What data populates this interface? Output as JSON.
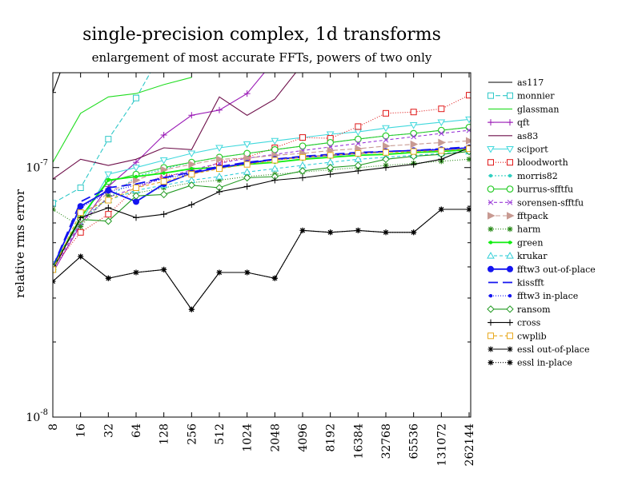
{
  "chart_data": {
    "type": "line",
    "title": "single-precision complex, 1d transforms",
    "subtitle": "enlargement of most accurate FFTs, powers of two only",
    "xlabel": "",
    "ylabel": "relative rms error",
    "yscale": "log",
    "ylim": [
      1e-08,
      2.4e-07
    ],
    "ytick_labels": [
      "10^-8",
      "10^-7"
    ],
    "x": [
      "8",
      "16",
      "32",
      "64",
      "128",
      "256",
      "512",
      "1024",
      "2048",
      "4096",
      "8192",
      "16384",
      "32768",
      "65536",
      "131072",
      "262144"
    ],
    "legend_position": "right",
    "grid": false,
    "series": [
      {
        "name": "as117",
        "color": "#000000",
        "dash": "",
        "marker": "none",
        "values": [
          2e-07,
          4e-07,
          null,
          null,
          null,
          null,
          null,
          null,
          null,
          null,
          null,
          null,
          null,
          null,
          null,
          null
        ]
      },
      {
        "name": "monnier",
        "color": "#2ec8c8",
        "dash": "6,3",
        "marker": "square",
        "values": [
          7.2e-08,
          8.3e-08,
          1.3e-07,
          1.9e-07,
          3e-07,
          null,
          null,
          null,
          null,
          null,
          null,
          null,
          null,
          null,
          null,
          null
        ]
      },
      {
        "name": "glassman",
        "color": "#22dd22",
        "dash": "",
        "marker": "none",
        "values": [
          1.05e-07,
          1.65e-07,
          1.92e-07,
          1.98e-07,
          2.15e-07,
          2.3e-07,
          null,
          null,
          null,
          null,
          null,
          null,
          null,
          null,
          null,
          null
        ]
      },
      {
        "name": "qft",
        "color": "#9a1ab6",
        "dash": "",
        "marker": "plus",
        "values": [
          3.8e-08,
          5.9e-08,
          8.4e-08,
          1.05e-07,
          1.35e-07,
          1.62e-07,
          1.7e-07,
          1.98e-07,
          2.7e-07,
          null,
          null,
          null,
          null,
          null,
          null,
          null
        ]
      },
      {
        "name": "as83",
        "color": "#6e0f4a",
        "dash": "",
        "marker": "none",
        "values": [
          9e-08,
          1.08e-07,
          1.02e-07,
          1.08e-07,
          1.2e-07,
          1.18e-07,
          1.92e-07,
          1.62e-07,
          1.88e-07,
          2.6e-07,
          null,
          null,
          null,
          null,
          null,
          null
        ]
      },
      {
        "name": "sciport",
        "color": "#40d8dc",
        "dash": "",
        "marker": "triangle-down",
        "values": [
          4.1e-08,
          6e-08,
          9.4e-08,
          1e-07,
          1.07e-07,
          1.14e-07,
          1.2e-07,
          1.24e-07,
          1.28e-07,
          1.32e-07,
          1.36e-07,
          1.39e-07,
          1.44e-07,
          1.48e-07,
          1.52e-07,
          1.56e-07
        ]
      },
      {
        "name": "bloodworth",
        "color": "#e01818",
        "dash": "1,2",
        "marker": "square",
        "values": [
          4e-08,
          5.5e-08,
          6.5e-08,
          8.3e-08,
          9.3e-08,
          9.5e-08,
          1.05e-07,
          1.1e-07,
          1.2e-07,
          1.32e-07,
          1.31e-07,
          1.46e-07,
          1.65e-07,
          1.67e-07,
          1.72e-07,
          1.95e-07
        ]
      },
      {
        "name": "morris82",
        "color": "#30cfc0",
        "dash": "2,2",
        "marker": "dot",
        "values": [
          4e-08,
          6.2e-08,
          7.5e-08,
          9.2e-08,
          9.9e-08,
          1.05e-07,
          1.1e-07,
          1.14e-07,
          1.18e-07,
          1.22e-07,
          1.26e-07,
          1.3e-07,
          1.34e-07,
          1.37e-07,
          1.41e-07,
          1.45e-07
        ]
      },
      {
        "name": "burrus-sfftfu",
        "color": "#2acc2a",
        "dash": "",
        "marker": "circle",
        "values": [
          3.9e-08,
          6.3e-08,
          8.8e-08,
          9.4e-08,
          1e-07,
          1.05e-07,
          1.1e-07,
          1.14e-07,
          1.18e-07,
          1.22e-07,
          1.26e-07,
          1.3e-07,
          1.34e-07,
          1.37e-07,
          1.41e-07,
          1.45e-07
        ]
      },
      {
        "name": "sorensen-sfftfu",
        "color": "#9a3ad8",
        "dash": "4,3",
        "marker": "cross",
        "values": [
          3.9e-08,
          6e-08,
          7.6e-08,
          8.3e-08,
          9.1e-08,
          9.8e-08,
          1.04e-07,
          1.09e-07,
          1.13e-07,
          1.17e-07,
          1.21e-07,
          1.25e-07,
          1.29e-07,
          1.33e-07,
          1.37e-07,
          1.41e-07
        ]
      },
      {
        "name": "fftpack",
        "color": "#c89a92",
        "dash": "6,3",
        "marker": "triangle-right",
        "values": [
          4e-08,
          6.1e-08,
          8e-08,
          8.9e-08,
          9.8e-08,
          1.03e-07,
          1.08e-07,
          1.09e-07,
          1.12e-07,
          1.14e-07,
          1.17e-07,
          1.19e-07,
          1.22e-07,
          1.24e-07,
          1.26e-07,
          1.28e-07
        ]
      },
      {
        "name": "harm",
        "color": "#2a8a1a",
        "dash": "1,2",
        "marker": "star",
        "values": [
          6.8e-08,
          5.8e-08,
          7.7e-08,
          7.9e-08,
          8.3e-08,
          8.7e-08,
          8.9e-08,
          9.2e-08,
          9.4e-08,
          9.6e-08,
          9.8e-08,
          1e-07,
          1.02e-07,
          1.04e-07,
          1.06e-07,
          1.08e-07
        ]
      },
      {
        "name": "green",
        "color": "#11ee11",
        "dash": "",
        "marker": "dot",
        "values": [
          4e-08,
          6.3e-08,
          8.9e-08,
          9.2e-08,
          9.5e-08,
          9.9e-08,
          1e-07,
          1.03e-07,
          1.05e-07,
          1.08e-07,
          1.1e-07,
          1.12e-07,
          1.13e-07,
          1.15e-07,
          1.16e-07,
          1.18e-07
        ]
      },
      {
        "name": "krukar",
        "color": "#35cfd8",
        "dash": "4,3",
        "marker": "triangle-up",
        "values": [
          3.9e-08,
          6.6e-08,
          7.4e-08,
          8.1e-08,
          8.5e-08,
          8.9e-08,
          9.2e-08,
          9.6e-08,
          9.9e-08,
          1.02e-07,
          1.05e-07,
          1.08e-07,
          1.1e-07,
          1.12e-07,
          1.14e-07,
          1.16e-07
        ]
      },
      {
        "name": "fftw3 out-of-place",
        "color": "#1414f0",
        "dash": "",
        "marker": "bigdot",
        "values": [
          4e-08,
          7e-08,
          8.1e-08,
          7.3e-08,
          8.6e-08,
          9.5e-08,
          1e-07,
          1.04e-07,
          1.08e-07,
          1.1e-07,
          1.12e-07,
          1.14e-07,
          1.16e-07,
          1.17e-07,
          1.18e-07,
          1.2e-07
        ]
      },
      {
        "name": "kissfft",
        "color": "#1414f0",
        "dash": "12,6",
        "marker": "none",
        "values": [
          4e-08,
          7.3e-08,
          8.3e-08,
          8.6e-08,
          9.1e-08,
          9.6e-08,
          1.01e-07,
          1.05e-07,
          1.08e-07,
          1.11e-07,
          1.13e-07,
          1.15e-07,
          1.16e-07,
          1.17e-07,
          1.19e-07,
          1.21e-07
        ]
      },
      {
        "name": "fftw3 in-place",
        "color": "#1414f0",
        "dash": "1,2",
        "marker": "dot",
        "values": [
          4e-08,
          6.9e-08,
          8e-08,
          8.5e-08,
          9e-08,
          9.5e-08,
          1e-07,
          1.04e-07,
          1.07e-07,
          1.1e-07,
          1.12e-07,
          1.14e-07,
          1.16e-07,
          1.17e-07,
          1.19e-07,
          1.2e-07
        ]
      },
      {
        "name": "ransom",
        "color": "#229a22",
        "dash": "",
        "marker": "diamond",
        "values": [
          4e-08,
          6.2e-08,
          6.1e-08,
          7.7e-08,
          7.8e-08,
          8.5e-08,
          8.3e-08,
          9.1e-08,
          9.2e-08,
          9.7e-08,
          1e-07,
          1.02e-07,
          1.08e-07,
          1.11e-07,
          1.13e-07,
          1.16e-07
        ]
      },
      {
        "name": "cross",
        "color": "#000000",
        "dash": "",
        "marker": "plus",
        "values": [
          3.9e-08,
          6.3e-08,
          6.9e-08,
          6.3e-08,
          6.5e-08,
          7.1e-08,
          8e-08,
          8.4e-08,
          8.9e-08,
          9.1e-08,
          9.4e-08,
          9.7e-08,
          1e-07,
          1.03e-07,
          1.08e-07,
          1.2e-07
        ]
      },
      {
        "name": "cwplib",
        "color": "#e8a81c",
        "dash": "4,3",
        "marker": "square",
        "values": [
          3.9e-08,
          6.6e-08,
          7.4e-08,
          8.3e-08,
          8.8e-08,
          9.4e-08,
          9.9e-08,
          1.03e-07,
          1.07e-07,
          1.1e-07,
          1.12e-07,
          1.14e-07,
          1.15e-07,
          1.16e-07,
          1.17e-07,
          1.19e-07
        ]
      },
      {
        "name": "essl out-of-place",
        "color": "#000000",
        "dash": "",
        "marker": "star",
        "values": [
          3.5e-08,
          4.4e-08,
          3.6e-08,
          3.8e-08,
          3.9e-08,
          2.7e-08,
          3.8e-08,
          3.8e-08,
          3.6e-08,
          5.6e-08,
          5.5e-08,
          5.6e-08,
          5.5e-08,
          5.5e-08,
          6.8e-08,
          6.8e-08
        ]
      },
      {
        "name": "essl in-place",
        "color": "#000000",
        "dash": "1,2",
        "marker": "star",
        "values": [
          3.5e-08,
          4.4e-08,
          3.6e-08,
          3.8e-08,
          3.9e-08,
          2.7e-08,
          3.8e-08,
          3.8e-08,
          3.6e-08,
          5.6e-08,
          5.5e-08,
          5.6e-08,
          5.5e-08,
          5.5e-08,
          6.8e-08,
          6.8e-08
        ]
      }
    ]
  }
}
